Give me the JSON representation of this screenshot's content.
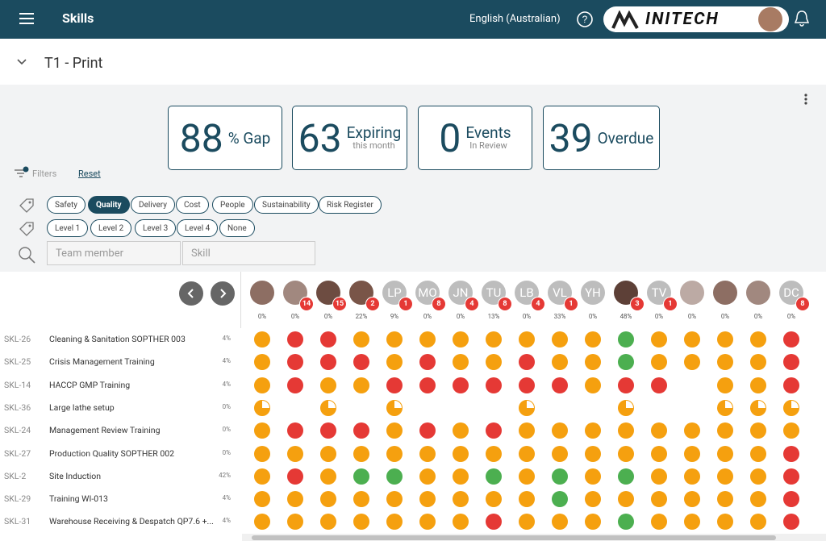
{
  "header": {
    "title": "Skills",
    "language": "English (Australian)",
    "brand": "INITECH"
  },
  "subheader": {
    "title": "T1 - Print"
  },
  "stats": [
    {
      "value": "88",
      "label": "% Gap"
    },
    {
      "value": "63",
      "label": "Expiring",
      "sub": "this month"
    },
    {
      "value": "0",
      "label": "Events",
      "sub": "In Review"
    },
    {
      "value": "39",
      "label": "Overdue"
    }
  ],
  "filters": {
    "label": "Filters",
    "reset": "Reset",
    "categories": [
      "Safety",
      "Quality",
      "Delivery",
      "Cost",
      "People",
      "Sustainability",
      "Risk Register"
    ],
    "selected_category": 1,
    "levels": [
      "Level 1",
      "Level 2",
      "Level 3",
      "Level 4",
      "None"
    ],
    "search": [
      "Team member",
      "Skill"
    ]
  },
  "members": [
    {
      "initials": null,
      "badge": null,
      "pct": "0%"
    },
    {
      "initials": null,
      "badge": 14,
      "pct": "0%"
    },
    {
      "initials": null,
      "badge": 15,
      "pct": "0%"
    },
    {
      "initials": null,
      "badge": 2,
      "pct": "22%"
    },
    {
      "initials": "LP",
      "badge": 1,
      "pct": "9%"
    },
    {
      "initials": "MO",
      "badge": 8,
      "pct": "0%"
    },
    {
      "initials": "JN",
      "badge": 4,
      "pct": "0%"
    },
    {
      "initials": "TU",
      "badge": 8,
      "pct": "13%"
    },
    {
      "initials": "LB",
      "badge": 4,
      "pct": "0%"
    },
    {
      "initials": "VL",
      "badge": 1,
      "pct": "33%"
    },
    {
      "initials": "YH",
      "badge": null,
      "pct": "0%"
    },
    {
      "initials": null,
      "badge": 3,
      "pct": "48%"
    },
    {
      "initials": "TV",
      "badge": 1,
      "pct": "0%"
    },
    {
      "initials": null,
      "badge": null,
      "pct": "0%"
    },
    {
      "initials": null,
      "badge": null,
      "pct": "0%"
    },
    {
      "initials": null,
      "badge": null,
      "pct": "0%"
    },
    {
      "initials": "DC",
      "badge": 8,
      "pct": "0%"
    }
  ],
  "skills": [
    {
      "code": "SKL-26",
      "name": "Cleaning & Sanitation SOPTHER 003",
      "pct": "4%",
      "cells": [
        "o",
        "r",
        "r",
        "o",
        "o",
        "o",
        "o",
        "o",
        "o",
        "o",
        "o",
        "g",
        "o",
        "o",
        "o",
        "o",
        "r"
      ]
    },
    {
      "code": "SKL-25",
      "name": "Crisis Management Training",
      "pct": "4%",
      "cells": [
        "o",
        "r",
        "r",
        "r",
        "o",
        "r",
        "o",
        "o",
        "r",
        "o",
        "o",
        "g",
        "o",
        "o",
        "o",
        "o",
        "r"
      ]
    },
    {
      "code": "SKL-14",
      "name": "HACCP GMP Training",
      "pct": "4%",
      "cells": [
        "o",
        "r",
        "o",
        "o",
        "r",
        "r",
        "r",
        "r",
        "r",
        "r",
        "o",
        "r",
        "r",
        null,
        "o",
        "o",
        "r"
      ]
    },
    {
      "code": "SKL-36",
      "name": "Large lathe setup",
      "pct": "0%",
      "cells": [
        "p",
        null,
        "p",
        null,
        "p",
        null,
        null,
        null,
        "p",
        null,
        null,
        "p",
        null,
        null,
        "p",
        "p",
        "p"
      ]
    },
    {
      "code": "SKL-24",
      "name": "Management Review Training",
      "pct": "0%",
      "cells": [
        "o",
        "r",
        "r",
        "r",
        "o",
        "r",
        "o",
        "r",
        "o",
        "o",
        "o",
        "o",
        "o",
        "o",
        "o",
        "o",
        "o"
      ]
    },
    {
      "code": "SKL-27",
      "name": "Production Quality SOPTHER 002",
      "pct": "0%",
      "cells": [
        "o",
        "o",
        "o",
        "o",
        "o",
        "o",
        "o",
        "o",
        "o",
        "o",
        "o",
        "o",
        "o",
        "o",
        "o",
        "o",
        "r"
      ]
    },
    {
      "code": "SKL-2",
      "name": "Site Induction",
      "pct": "42%",
      "cells": [
        "o",
        "r",
        "o",
        "g",
        "g",
        "o",
        "o",
        "g",
        "o",
        "g",
        "o",
        "g",
        "o",
        "o",
        "o",
        "o",
        "r"
      ]
    },
    {
      "code": "SKL-29",
      "name": "Training WI-013",
      "pct": "4%",
      "cells": [
        "o",
        "o",
        "o",
        "o",
        "o",
        "o",
        "o",
        "o",
        "o",
        "g",
        "o",
        "o",
        "o",
        "o",
        "o",
        "o",
        "r"
      ]
    },
    {
      "code": "SKL-31",
      "name": "Warehouse Receiving & Despatch QP7.6 +...",
      "pct": "4%",
      "cells": [
        "o",
        "o",
        "o",
        "o",
        "o",
        "o",
        "o",
        "r",
        "o",
        "o",
        "o",
        "g",
        "o",
        "o",
        "o",
        "o",
        "r"
      ]
    }
  ]
}
